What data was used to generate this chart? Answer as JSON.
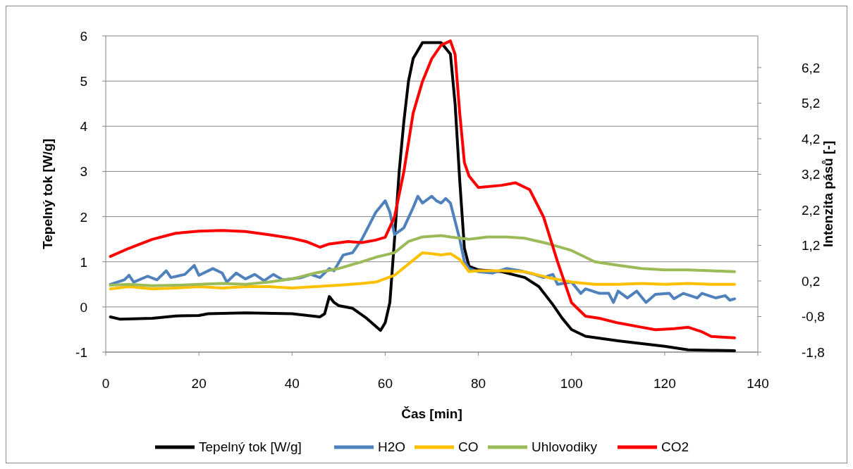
{
  "chart_data": {
    "type": "line",
    "xlabel": "Čas [min]",
    "ylabel": "Tepelný tok [W/g]",
    "y2label": "Intenzita pásů [-]",
    "xlim": [
      0,
      140
    ],
    "xticks": [
      0,
      20,
      40,
      60,
      80,
      100,
      120,
      140
    ],
    "ylim": [
      -1,
      6
    ],
    "yticks": [
      -1,
      0,
      1,
      2,
      3,
      4,
      5,
      6
    ],
    "y2lim": [
      -1.8,
      7.09
    ],
    "y2ticks": [
      {
        "value": -1.8,
        "label": "-1,8"
      },
      {
        "value": -0.8,
        "label": "-0,8"
      },
      {
        "value": 0.2,
        "label": "0,2"
      },
      {
        "value": 1.2,
        "label": "1,2"
      },
      {
        "value": 2.2,
        "label": "2,2"
      },
      {
        "value": 3.2,
        "label": "3,2"
      },
      {
        "value": 4.2,
        "label": "4,2"
      },
      {
        "value": 5.2,
        "label": "5,2"
      },
      {
        "value": 6.2,
        "label": "6,2"
      }
    ],
    "grid": "y",
    "legend": "bottom",
    "marker": "none",
    "line_style": "solid",
    "series": [
      {
        "name": "Tepelný tok [W/g]",
        "color": "#000000",
        "x": [
          1,
          3,
          10,
          15,
          20,
          22,
          30,
          40,
          46,
          47,
          48,
          49,
          50,
          53,
          56,
          59,
          60,
          61,
          62,
          63,
          64,
          65,
          66,
          68,
          72,
          74,
          75,
          76,
          77,
          78,
          80,
          85,
          90,
          93,
          96,
          98,
          100,
          103,
          110,
          120,
          125,
          130,
          135
        ],
        "values": [
          -0.22,
          -0.27,
          -0.25,
          -0.2,
          -0.19,
          -0.15,
          -0.13,
          -0.15,
          -0.22,
          -0.15,
          0.23,
          0.1,
          0.03,
          -0.03,
          -0.25,
          -0.52,
          -0.35,
          0.1,
          1.5,
          3,
          4.1,
          5,
          5.5,
          5.85,
          5.85,
          5.6,
          4.5,
          2.8,
          1.3,
          0.9,
          0.82,
          0.78,
          0.65,
          0.45,
          0.05,
          -0.25,
          -0.5,
          -0.65,
          -0.75,
          -0.87,
          -0.95,
          -0.96,
          -0.97
        ]
      },
      {
        "name": "H2O",
        "color": "#4f81bd",
        "x": [
          1,
          4,
          5,
          6,
          9,
          11,
          13,
          14,
          17,
          19,
          20,
          23,
          25,
          26,
          28,
          30,
          32,
          34,
          36,
          38,
          42,
          44,
          46,
          48,
          49,
          51,
          53,
          55,
          58,
          60,
          61,
          62,
          64,
          66,
          67,
          68,
          70,
          71,
          72,
          73,
          74,
          76,
          77,
          78,
          80,
          83,
          86,
          89,
          92,
          94,
          96,
          97,
          100,
          102,
          103,
          106,
          108,
          109,
          110,
          112,
          114,
          116,
          118,
          121,
          122,
          124,
          127,
          128,
          131,
          133,
          134,
          135
        ],
        "values": [
          0.5,
          0.6,
          0.7,
          0.55,
          0.68,
          0.6,
          0.8,
          0.65,
          0.72,
          0.92,
          0.7,
          0.85,
          0.75,
          0.55,
          0.75,
          0.62,
          0.72,
          0.58,
          0.72,
          0.6,
          0.65,
          0.72,
          0.65,
          0.85,
          0.8,
          1.15,
          1.2,
          1.5,
          2.1,
          2.35,
          2.1,
          1.6,
          1.75,
          2.2,
          2.45,
          2.3,
          2.45,
          2.35,
          2.3,
          2.4,
          2.3,
          1.5,
          1.0,
          0.85,
          0.78,
          0.75,
          0.85,
          0.8,
          0.72,
          0.65,
          0.72,
          0.5,
          0.55,
          0.3,
          0.4,
          0.3,
          0.3,
          0.1,
          0.35,
          0.2,
          0.35,
          0.1,
          0.28,
          0.3,
          0.18,
          0.3,
          0.2,
          0.3,
          0.2,
          0.25,
          0.15,
          0.18
        ]
      },
      {
        "name": "CO",
        "color": "#ffc000",
        "x": [
          1,
          5,
          10,
          15,
          20,
          25,
          30,
          35,
          40,
          45,
          50,
          55,
          58,
          62,
          65,
          68,
          70,
          72,
          74,
          76,
          78,
          80,
          85,
          90,
          95,
          100,
          105,
          110,
          115,
          120,
          125,
          130,
          135
        ],
        "values": [
          0.4,
          0.45,
          0.4,
          0.42,
          0.45,
          0.42,
          0.45,
          0.45,
          0.42,
          0.45,
          0.48,
          0.52,
          0.55,
          0.7,
          0.95,
          1.2,
          1.18,
          1.15,
          1.18,
          1.05,
          0.78,
          0.8,
          0.8,
          0.78,
          0.65,
          0.55,
          0.5,
          0.5,
          0.52,
          0.5,
          0.52,
          0.5,
          0.5
        ]
      },
      {
        "name": "Uhlovodiky",
        "color": "#9bbb59",
        "x": [
          1,
          5,
          10,
          15,
          20,
          25,
          30,
          35,
          40,
          45,
          50,
          55,
          58,
          62,
          65,
          68,
          72,
          74,
          78,
          82,
          86,
          90,
          95,
          100,
          105,
          110,
          115,
          120,
          125,
          130,
          135
        ],
        "values": [
          0.48,
          0.5,
          0.47,
          0.48,
          0.5,
          0.52,
          0.5,
          0.55,
          0.62,
          0.75,
          0.85,
          1.0,
          1.1,
          1.2,
          1.45,
          1.55,
          1.58,
          1.55,
          1.5,
          1.55,
          1.55,
          1.52,
          1.4,
          1.25,
          1.0,
          0.92,
          0.85,
          0.82,
          0.82,
          0.8,
          0.78
        ]
      },
      {
        "name": "CO2",
        "color": "#ff0000",
        "axis": "y2",
        "x": [
          1,
          5,
          10,
          15,
          20,
          25,
          30,
          35,
          40,
          43,
          46,
          48,
          52,
          55,
          58,
          60,
          62,
          64,
          66,
          68,
          70,
          72,
          73,
          74,
          75,
          76,
          77,
          78,
          80,
          85,
          88,
          91,
          94,
          97,
          100,
          103,
          106,
          110,
          115,
          118,
          122,
          125,
          128,
          130,
          135
        ],
        "values": [
          0.89,
          1.12,
          1.37,
          1.54,
          1.6,
          1.62,
          1.59,
          1.5,
          1.4,
          1.31,
          1.15,
          1.24,
          1.31,
          1.28,
          1.35,
          1.43,
          2.0,
          3.27,
          4.92,
          5.81,
          6.45,
          6.83,
          6.89,
          6.95,
          6.57,
          4.92,
          3.53,
          3.15,
          2.83,
          2.89,
          2.96,
          2.77,
          2.0,
          0.74,
          -0.41,
          -0.79,
          -0.85,
          -0.98,
          -1.1,
          -1.17,
          -1.14,
          -1.1,
          -1.23,
          -1.36,
          -1.4
        ]
      }
    ]
  }
}
